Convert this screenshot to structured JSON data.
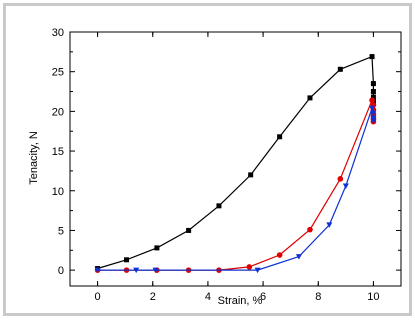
{
  "chart_data": {
    "type": "line",
    "xlabel": "Strain, %",
    "ylabel": "Tenacity, N",
    "xlim": [
      -1,
      11
    ],
    "ylim": [
      -2,
      30
    ],
    "x_ticks": [
      0,
      2,
      4,
      6,
      8,
      10
    ],
    "y_ticks": [
      0,
      5,
      10,
      15,
      20,
      25,
      30
    ],
    "grid": false,
    "legend": "none",
    "series": [
      {
        "color": "#000000",
        "marker": "square",
        "x": [
          0,
          1.05,
          2.15,
          3.3,
          4.4,
          5.55,
          6.6,
          7.7,
          8.8,
          9.95,
          10.0,
          10.0,
          10.0,
          10.0,
          10.0
        ],
        "y": [
          0.2,
          1.3,
          2.8,
          5.0,
          8.1,
          12.0,
          16.8,
          21.7,
          25.3,
          26.9,
          23.5,
          22.5,
          21.8,
          21.3,
          21.0
        ]
      },
      {
        "color": "#e00000",
        "marker": "circle",
        "x": [
          0,
          1.05,
          2.15,
          3.3,
          4.4,
          5.5,
          6.6,
          7.7,
          8.8,
          9.95,
          10.0,
          10.0,
          10.0,
          10.0,
          10.0,
          10.0
        ],
        "y": [
          0,
          0,
          0,
          0,
          0,
          0.4,
          1.9,
          5.1,
          11.5,
          21.4,
          20.8,
          20.2,
          19.7,
          19.3,
          19.0,
          18.7
        ]
      },
      {
        "color": "#1030d0",
        "marker": "triangle",
        "x": [
          0,
          1.4,
          2.1,
          5.8,
          7.3,
          8.4,
          9.0,
          9.95,
          10.0,
          10.0,
          10.0
        ],
        "y": [
          0,
          0,
          0,
          0,
          1.7,
          5.7,
          10.6,
          20.4,
          19.8,
          19.2,
          18.8
        ]
      }
    ]
  }
}
